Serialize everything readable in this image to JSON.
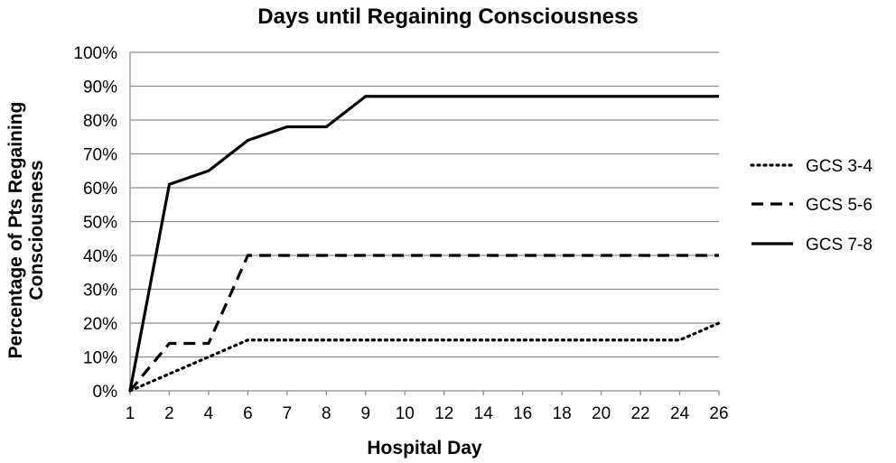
{
  "chart_data": {
    "type": "line",
    "title": "Days until Regaining Consciousness",
    "xlabel": "Hospital Day",
    "ylabel_lines": [
      "Percentage of Pts Regaining",
      "Consciousness"
    ],
    "categories": [
      "1",
      "2",
      "4",
      "6",
      "7",
      "8",
      "9",
      "10",
      "12",
      "14",
      "16",
      "18",
      "20",
      "22",
      "24",
      "26"
    ],
    "ylim": [
      0,
      100
    ],
    "y_ticks": [
      "0%",
      "10%",
      "20%",
      "30%",
      "40%",
      "50%",
      "60%",
      "70%",
      "80%",
      "90%",
      "100%"
    ],
    "grid": "horizontal",
    "legend_position": "right",
    "series": [
      {
        "name": "GCS 3-4",
        "dash": "dotted",
        "values": [
          0,
          5,
          10,
          15,
          15,
          15,
          15,
          15,
          15,
          15,
          15,
          15,
          15,
          15,
          15,
          20
        ]
      },
      {
        "name": "GCS 5-6",
        "dash": "dashed",
        "values": [
          0,
          14,
          14,
          40,
          40,
          40,
          40,
          40,
          40,
          40,
          40,
          40,
          40,
          40,
          40,
          40
        ]
      },
      {
        "name": "GCS 7-8",
        "dash": "solid",
        "values": [
          0,
          61,
          65,
          74,
          78,
          78,
          87,
          87,
          87,
          87,
          87,
          87,
          87,
          87,
          87,
          87
        ]
      }
    ],
    "colors": {
      "line": "#000000",
      "grid": "#8c8c8c"
    }
  }
}
